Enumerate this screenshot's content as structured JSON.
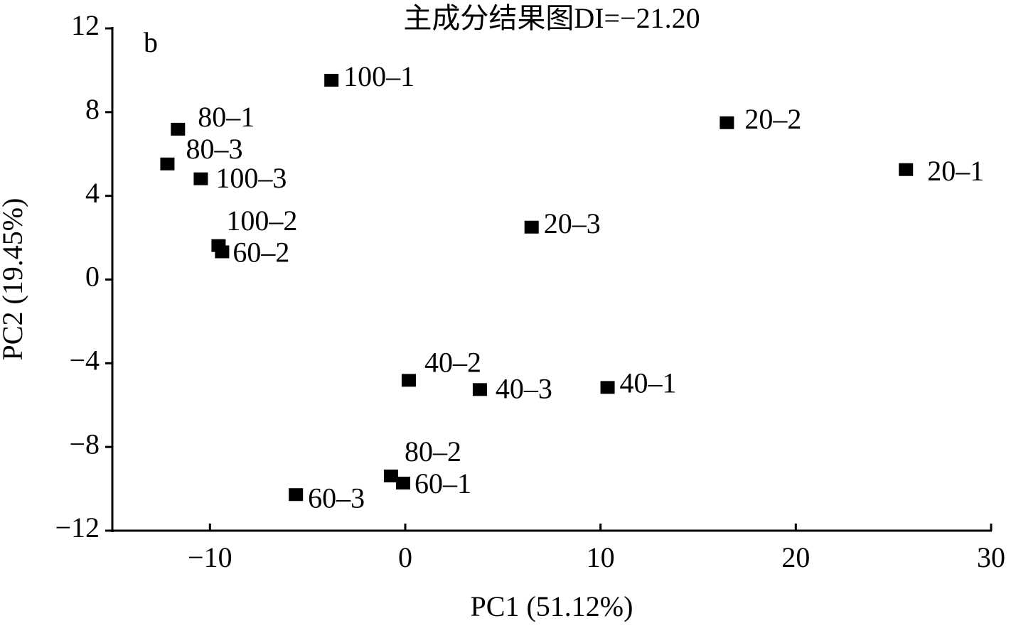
{
  "chart_data": {
    "type": "scatter",
    "title": "主成分结果图DI=−21.20",
    "panel_label": "b",
    "x_label": "PC1 (51.12%)",
    "y_label": "PC2 (19.45%)",
    "xlim": [
      -15,
      30
    ],
    "xticks": [
      {
        "value": -10,
        "label": "−10"
      },
      0,
      10,
      20,
      30
    ],
    "ylim": [
      -12,
      12
    ],
    "yticks": [
      {
        "value": -12,
        "label": "−12"
      },
      {
        "value": -8,
        "label": "−8"
      },
      {
        "value": -4,
        "label": "−4"
      },
      0,
      4,
      8,
      12
    ],
    "color": "#000000",
    "points": [
      {
        "label": "100–1",
        "x": -3.78,
        "y": 9.49
      },
      {
        "label": "80–1",
        "x": -11.64,
        "y": 7.15
      },
      {
        "label": "80–3",
        "x": -12.18,
        "y": 5.49
      },
      {
        "label": "100–3",
        "x": -10.47,
        "y": 4.78
      },
      {
        "label": "20–2",
        "x": 16.47,
        "y": 7.46
      },
      {
        "label": "20–1",
        "x": 25.64,
        "y": 5.22
      },
      {
        "label": "20–3",
        "x": 6.47,
        "y": 2.47
      },
      {
        "label": "100–2",
        "x": -9.56,
        "y": 1.59
      },
      {
        "label": "60–2",
        "x": -9.38,
        "y": 1.29
      },
      {
        "label": "40–2",
        "x": 0.18,
        "y": -4.85
      },
      {
        "label": "40–3",
        "x": 3.82,
        "y": -5.29
      },
      {
        "label": "40–1",
        "x": 10.36,
        "y": -5.19
      },
      {
        "label": "80–2",
        "x": -0.73,
        "y": -9.42
      },
      {
        "label": "60–1",
        "x": -0.11,
        "y": -9.76
      },
      {
        "label": "60–3",
        "x": -5.6,
        "y": -10.31
      }
    ]
  }
}
